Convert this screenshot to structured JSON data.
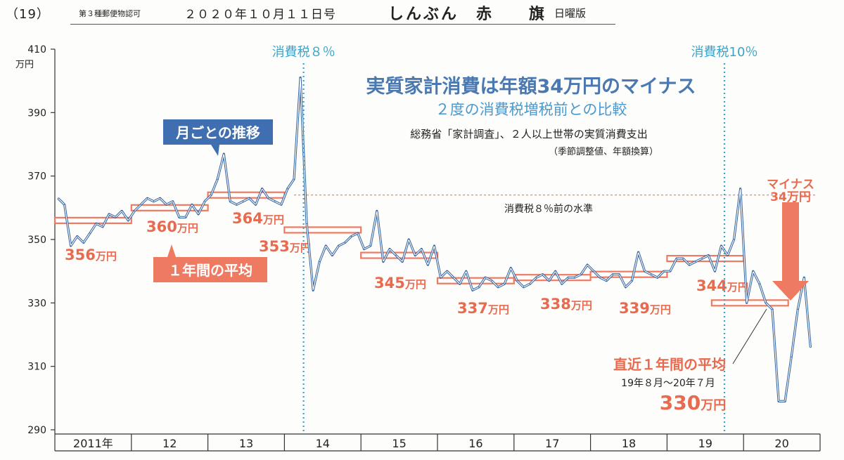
{
  "header": {
    "issue": "（19）",
    "postal": "第３種郵便物認可",
    "date": "２０２０年１０月１１日号",
    "paper": "しんぶん　赤　　旗",
    "edition": "日曜版"
  },
  "chart_data": {
    "type": "line",
    "title": "実質家計消費は年額34万円のマイナス",
    "subtitle": "２度の消費税増税前との比較",
    "source": "総務省「家計調査」、２人以上世帯の実質消費支出",
    "source_note": "（季節調整値、年額換算）",
    "ylabel": "万円",
    "ylim": [
      290,
      410
    ],
    "yticks": [
      410,
      390,
      370,
      350,
      330,
      310,
      290
    ],
    "x_categories": [
      "2011年",
      "12",
      "13",
      "14",
      "15",
      "16",
      "17",
      "18",
      "19",
      "20"
    ],
    "series": [
      {
        "name": "月ごとの推移",
        "x_start": "2011-01",
        "frequency": "monthly",
        "values": [
          363,
          361,
          348,
          351,
          349,
          352,
          355,
          354,
          358,
          357,
          359,
          356,
          359,
          361,
          363,
          362,
          363,
          361,
          362,
          357,
          357,
          361,
          358,
          362,
          364,
          369,
          377,
          362,
          361,
          362,
          363,
          361,
          366,
          363,
          362,
          361,
          366,
          369,
          401,
          355,
          334,
          343,
          348,
          345,
          348,
          349,
          351,
          352,
          347,
          348,
          359,
          343,
          347,
          345,
          343,
          350,
          345,
          347,
          342,
          348,
          338,
          340,
          338,
          336,
          340,
          334,
          335,
          338,
          337,
          335,
          336,
          341,
          337,
          335,
          336,
          338,
          339,
          337,
          340,
          336,
          338,
          338,
          339,
          342,
          340,
          338,
          337,
          339,
          339,
          335,
          337,
          346,
          340,
          339,
          338,
          340,
          340,
          344,
          344,
          342,
          343,
          344,
          345,
          340,
          348,
          345,
          350,
          366,
          330,
          340,
          336,
          330,
          328,
          299,
          299,
          313,
          328,
          338,
          316
        ]
      }
    ],
    "averages": [
      {
        "period": "2011年",
        "value": 356,
        "label": "356",
        "unit": "万円"
      },
      {
        "period": "12",
        "value": 360,
        "label": "360",
        "unit": "万円"
      },
      {
        "period": "13",
        "value": 364,
        "label": "364",
        "unit": "万円"
      },
      {
        "period": "14",
        "value": 353,
        "label": "353",
        "unit": "万円"
      },
      {
        "period": "15",
        "value": 345,
        "label": "345",
        "unit": "万円"
      },
      {
        "period": "16",
        "value": 337,
        "label": "337",
        "unit": "万円"
      },
      {
        "period": "17",
        "value": 338,
        "label": "338",
        "unit": "万円"
      },
      {
        "period": "18",
        "value": 339,
        "label": "339",
        "unit": "万円"
      },
      {
        "period": "19",
        "value": 344,
        "label": "344",
        "unit": "万円"
      },
      {
        "period": "19年8月～20年7月",
        "value": 330,
        "label": "330",
        "unit": "万円"
      }
    ],
    "reference_level": {
      "value": 364,
      "label": "消費税８％前の水準"
    },
    "tax_lines": [
      {
        "date": "2014-04",
        "label": "消費税８％"
      },
      {
        "date": "2019-10",
        "label": "消費税10％"
      }
    ],
    "callouts": {
      "monthly": "月ごとの推移",
      "yearly_avg": "１年間の平均",
      "recent_title": "直近１年間の平均",
      "recent_period": "19年８月～20年７月",
      "recent_value": "330",
      "recent_unit": "万円",
      "minus": "マイナス",
      "minus_value": "34万円"
    },
    "colors": {
      "series_line": "#2f5f9e",
      "avg_bar": "#ef7a62",
      "callout_blue": "#3f6fb0",
      "callout_red": "#ef7a62",
      "tax_line": "#3aa3c9",
      "ref_line": "#e86a4f"
    }
  }
}
